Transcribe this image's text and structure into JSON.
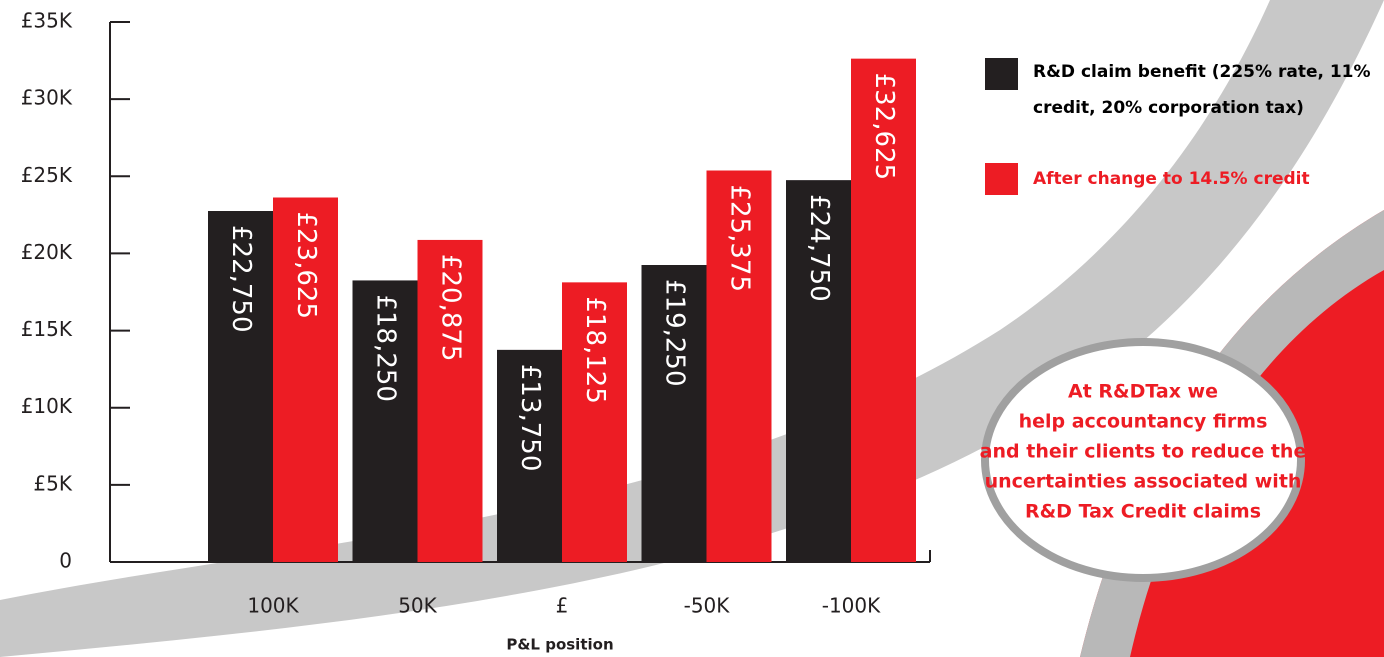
{
  "chart_data": {
    "type": "bar",
    "categories": [
      "100K",
      "50K",
      "£",
      "-50K",
      "-100K"
    ],
    "x_label": "P&L position",
    "series": [
      {
        "name": "R&D claim benefit (225% rate, 11% credit, 20% corporation tax)",
        "color": "#231f20",
        "values": [
          22750,
          18250,
          13750,
          19250,
          24750
        ],
        "value_labels": [
          "£22,750",
          "£18,250",
          "£13,750",
          "£19,250",
          "£24,750"
        ]
      },
      {
        "name": "After change to 14.5% credit",
        "color": "#ed1c24",
        "values": [
          23625,
          20875,
          18125,
          25375,
          32625
        ],
        "value_labels": [
          "£23,625",
          "£20,875",
          "£18,125",
          "£25,375",
          "£32,625"
        ]
      }
    ],
    "ylim": [
      0,
      35000
    ],
    "yticks": [
      0,
      {
        "value": 5000,
        "label": "£5K"
      },
      {
        "value": 10000,
        "label": "£10K"
      },
      {
        "value": 15000,
        "label": "£15K"
      },
      {
        "value": 20000,
        "label": "£20K"
      },
      {
        "value": 25000,
        "label": "£25K"
      },
      {
        "value": 30000,
        "label": "£30K"
      },
      {
        "value": 35000,
        "label": "£35K"
      }
    ],
    "annotation": [
      "At R&DTax we",
      "help accountancy firms",
      "and their clients to reduce the",
      "uncertainties associated with",
      "R&D Tax Credit claims"
    ]
  }
}
